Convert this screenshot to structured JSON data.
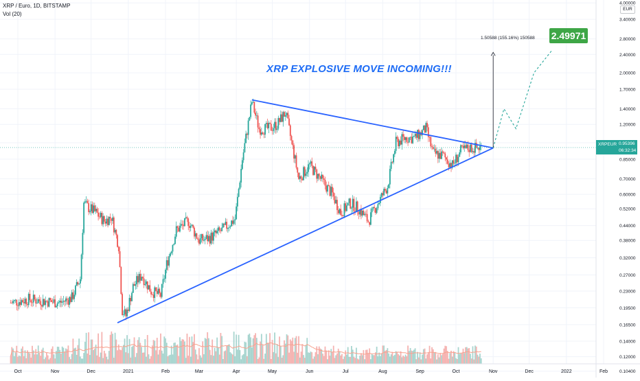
{
  "header": {
    "symbol_line": "XRP / Euro, 1D, BITSTAMP",
    "volume_line": "Vol (20)"
  },
  "annotations": {
    "headline": "XRP EXPLOSIVE MOVE INCOMING!!!",
    "target_price": "2.49971",
    "measure_label": "1.50588 (155.16%) 150588"
  },
  "price_badge": {
    "symbol": "XRPEUR",
    "price": "0.95396",
    "countdown": "06:32:34"
  },
  "currency": "EUR",
  "colors": {
    "up": "#26a69a",
    "down": "#ef5350",
    "trendline": "#2962ff",
    "projection": "#26a69a",
    "headline": "#1e6cf5",
    "target_badge": "#3ea646",
    "volume_up": "#a8d5cf",
    "volume_down": "#f5b3b1",
    "volume_ma": "#f7a28e"
  },
  "chart_data": {
    "type": "candlestick",
    "symbol": "XRP / Euro",
    "interval": "1D",
    "exchange": "BITSTAMP",
    "y_scale": "log",
    "ylim": [
      0.104,
      4.0
    ],
    "x_tick_labels": [
      "Oct",
      "Nov",
      "Dec",
      "2021",
      "Feb",
      "Mar",
      "Apr",
      "May",
      "Jun",
      "Jul",
      "Aug",
      "Sep",
      "Oct",
      "Nov",
      "Dec",
      "2022",
      "Feb"
    ],
    "y_tick_labels": [
      "4.00000",
      "3.40000",
      "2.80000",
      "2.40000",
      "2.00000",
      "1.70000",
      "1.40000",
      "1.20000",
      "1.00000",
      "0.85000",
      "0.70000",
      "0.60000",
      "0.52000",
      "0.44000",
      "0.38000",
      "0.32000",
      "0.27000",
      "0.23000",
      "0.19500",
      "0.16500",
      "0.14000",
      "0.12000",
      "0.10400"
    ],
    "price_series": {
      "name": "XRPEUR",
      "points": [
        [
          "2020-09-25",
          0.205
        ],
        [
          "2020-10-10",
          0.212
        ],
        [
          "2020-10-25",
          0.208
        ],
        [
          "2020-11-05",
          0.205
        ],
        [
          "2020-11-15",
          0.215
        ],
        [
          "2020-11-22",
          0.26
        ],
        [
          "2020-11-25",
          0.55
        ],
        [
          "2020-11-28",
          0.53
        ],
        [
          "2020-12-05",
          0.5
        ],
        [
          "2020-12-12",
          0.46
        ],
        [
          "2020-12-18",
          0.48
        ],
        [
          "2020-12-24",
          0.36
        ],
        [
          "2020-12-27",
          0.19
        ],
        [
          "2020-12-30",
          0.18
        ],
        [
          "2021-01-05",
          0.24
        ],
        [
          "2021-01-12",
          0.27
        ],
        [
          "2021-01-20",
          0.23
        ],
        [
          "2021-01-28",
          0.22
        ],
        [
          "2021-02-02",
          0.3
        ],
        [
          "2021-02-10",
          0.42
        ],
        [
          "2021-02-20",
          0.46
        ],
        [
          "2021-03-01",
          0.38
        ],
        [
          "2021-03-10",
          0.39
        ],
        [
          "2021-03-20",
          0.42
        ],
        [
          "2021-03-31",
          0.47
        ],
        [
          "2021-04-06",
          0.85
        ],
        [
          "2021-04-14",
          1.5
        ],
        [
          "2021-04-20",
          1.15
        ],
        [
          "2021-04-28",
          1.15
        ],
        [
          "2021-05-05",
          1.2
        ],
        [
          "2021-05-12",
          1.35
        ],
        [
          "2021-05-18",
          0.95
        ],
        [
          "2021-05-23",
          0.7
        ],
        [
          "2021-06-01",
          0.8
        ],
        [
          "2021-06-10",
          0.7
        ],
        [
          "2021-06-20",
          0.6
        ],
        [
          "2021-06-27",
          0.5
        ],
        [
          "2021-07-05",
          0.55
        ],
        [
          "2021-07-12",
          0.52
        ],
        [
          "2021-07-20",
          0.46
        ],
        [
          "2021-07-28",
          0.55
        ],
        [
          "2021-08-05",
          0.65
        ],
        [
          "2021-08-12",
          1.0
        ],
        [
          "2021-08-20",
          1.05
        ],
        [
          "2021-08-28",
          1.05
        ],
        [
          "2021-09-06",
          1.15
        ],
        [
          "2021-09-12",
          0.9
        ],
        [
          "2021-09-20",
          0.88
        ],
        [
          "2021-09-28",
          0.8
        ],
        [
          "2021-10-05",
          0.92
        ],
        [
          "2021-10-12",
          0.95
        ],
        [
          "2021-10-18",
          0.95
        ],
        [
          "2021-10-22",
          0.95396
        ]
      ]
    },
    "trendlines": [
      {
        "name": "upper",
        "from": [
          "2021-04-14",
          1.53
        ],
        "to": [
          "2021-11-01",
          0.95
        ]
      },
      {
        "name": "lower",
        "from": [
          "2020-12-23",
          0.168
        ],
        "to": [
          "2021-11-01",
          0.95
        ]
      }
    ],
    "projection": {
      "points": [
        [
          "2021-11-01",
          0.95
        ],
        [
          "2021-11-10",
          1.4
        ],
        [
          "2021-11-20",
          1.15
        ],
        [
          "2021-12-05",
          2.0
        ],
        [
          "2021-12-20",
          2.49971
        ]
      ]
    },
    "measure": {
      "from": 0.95,
      "to": 2.45,
      "label": "1.50588 (155.16%) 150588"
    },
    "last_price": 0.95396,
    "target": 2.49971,
    "volume_ma_period": 20
  }
}
